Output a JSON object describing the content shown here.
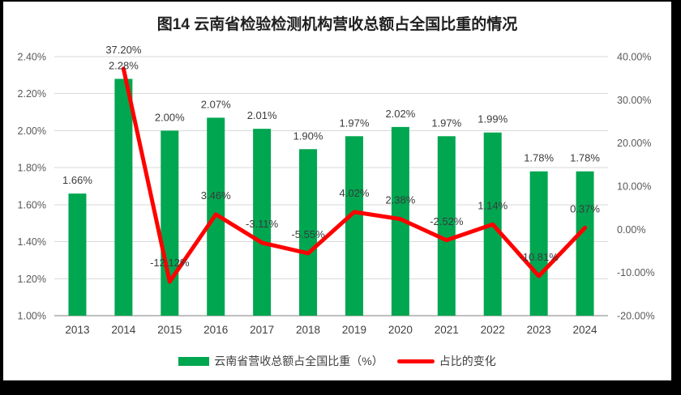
{
  "frame": {
    "background_color": "#000000",
    "surface_color": "#FFFFFF"
  },
  "title": "图14 云南省检验检测机构营收总额占全国比重的情况",
  "legend": {
    "items": [
      {
        "label": "云南省营收总额占全国比重（%）",
        "swatch": "bar",
        "color": "#00A650"
      },
      {
        "label": "占比的变化",
        "swatch": "line",
        "color": "#FF0000"
      }
    ]
  },
  "chart_data": {
    "type": "combo",
    "title": "图14 云南省检验检测机构营收总额占全国比重的情况",
    "categories": [
      "2013",
      "2014",
      "2015",
      "2016",
      "2017",
      "2018",
      "2019",
      "2020",
      "2021",
      "2022",
      "2023",
      "2024"
    ],
    "series": [
      {
        "name": "云南省营收总额占全国比重（%）",
        "type": "bar",
        "axis": "left",
        "color": "#00A650",
        "values": [
          1.66,
          2.28,
          2.0,
          2.07,
          2.01,
          1.9,
          1.97,
          2.02,
          1.97,
          1.99,
          1.78,
          1.78
        ],
        "data_labels": [
          "1.66%",
          "2.28%",
          "2.00%",
          "2.07%",
          "2.01%",
          "1.90%",
          "1.97%",
          "2.02%",
          "1.97%",
          "1.99%",
          "1.78%",
          "1.78%"
        ]
      },
      {
        "name": "占比的变化",
        "type": "line",
        "axis": "right",
        "color": "#FF0000",
        "values": [
          null,
          37.2,
          -12.12,
          3.46,
          -3.11,
          -5.55,
          4.02,
          2.38,
          -2.52,
          1.14,
          -10.81,
          0.37
        ],
        "data_labels": [
          null,
          "37.20%",
          "-12.12%",
          "3.46%",
          "-3.11%",
          "-5.55%",
          "4.02%",
          "2.38%",
          "-2.52%",
          "1.14%",
          "-10.81%",
          "0.37%"
        ]
      }
    ],
    "left_axis": {
      "min": 1.0,
      "max": 2.4,
      "step": 0.2,
      "tick_labels": [
        "2.40%",
        "2.20%",
        "2.00%",
        "1.80%",
        "1.60%",
        "1.40%",
        "1.20%",
        "1.00%"
      ]
    },
    "right_axis": {
      "min": -20,
      "max": 40,
      "step": 10,
      "tick_labels": [
        "40.00%",
        "30.00%",
        "20.00%",
        "10.00%",
        "0.00%",
        "-10.00%",
        "-20.00%"
      ]
    },
    "grid": "horizontal",
    "gridline_color": "#D9D9D9",
    "axis_line_color": "#BFBFBF",
    "label_text_color": "#3b3b3b",
    "axis_text_color": "#595959",
    "legend_position": "bottom"
  }
}
